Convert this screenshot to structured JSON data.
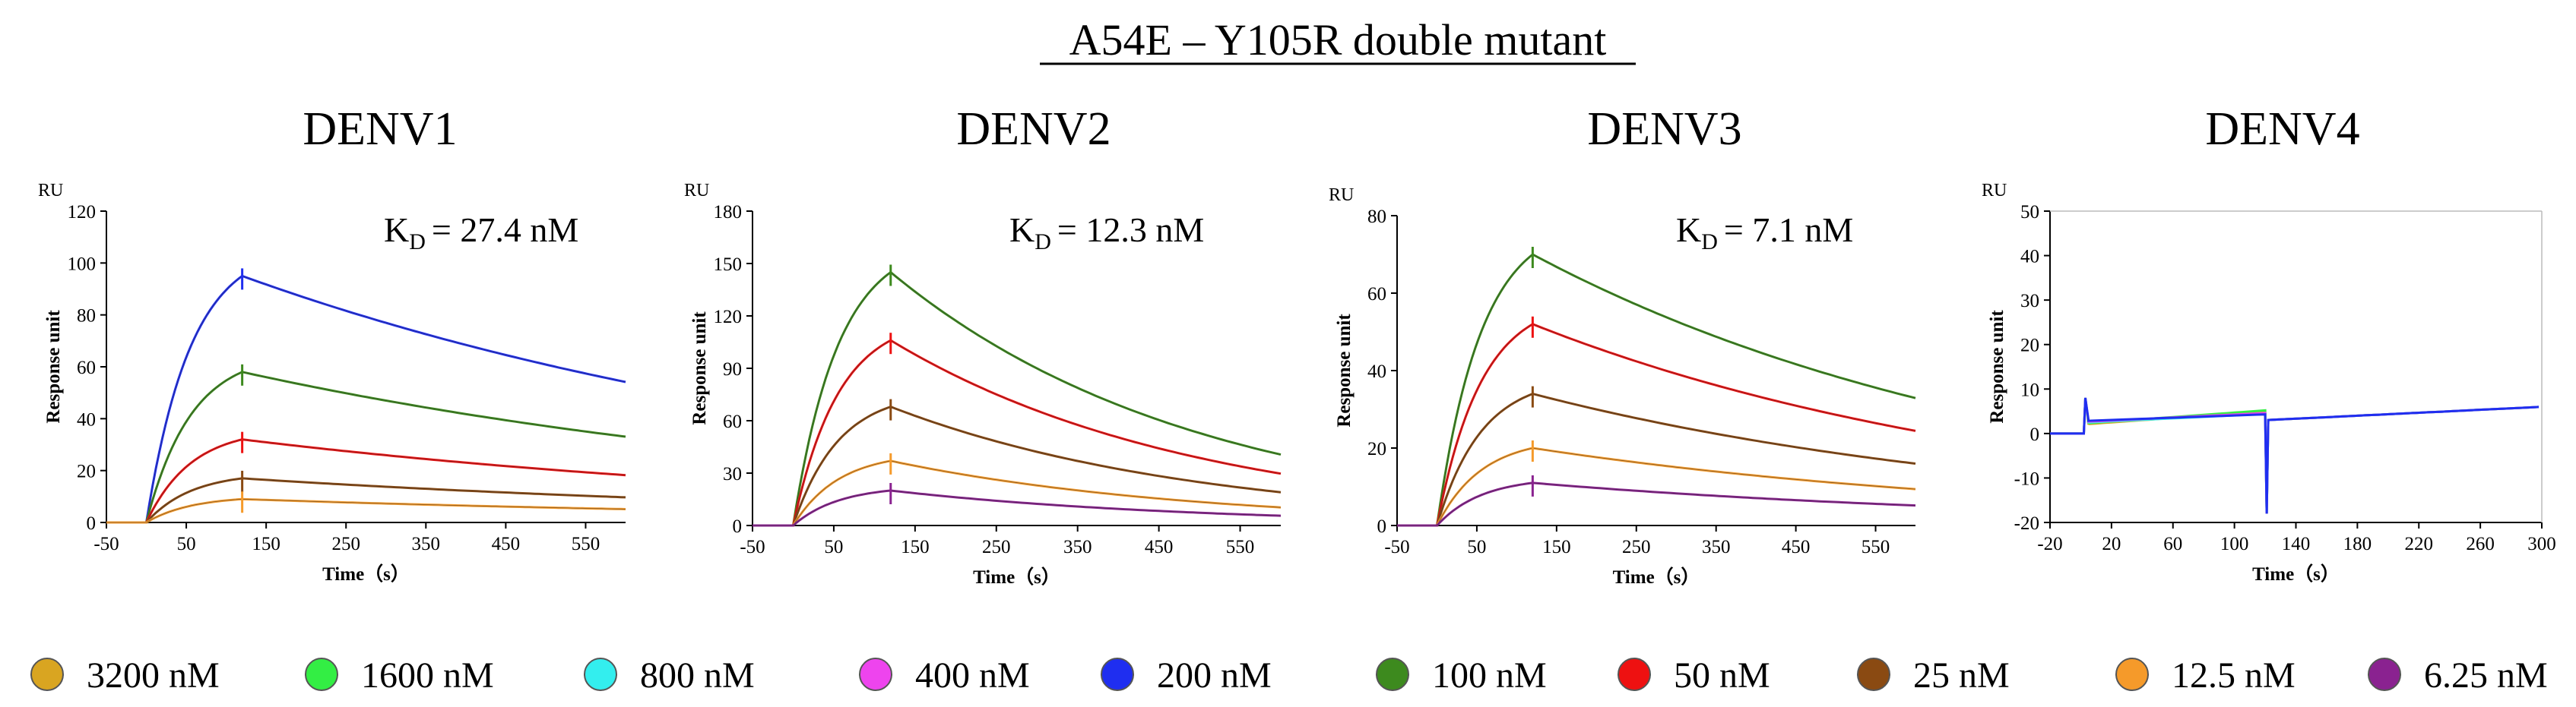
{
  "title": "A54E – Y105R double mutant",
  "legend": [
    {
      "label": "3200 nM",
      "color": "#d9a521"
    },
    {
      "label": "1600 nM",
      "color": "#33ee44"
    },
    {
      "label": "800 nM",
      "color": "#33eeee"
    },
    {
      "label": "400 nM",
      "color": "#ee44ee"
    },
    {
      "label": "200 nM",
      "color": "#1f2ef0"
    },
    {
      "label": "100 nM",
      "color": "#3d8a1e"
    },
    {
      "label": "50 nM",
      "color": "#ee1111"
    },
    {
      "label": "25 nM",
      "color": "#8a4a12"
    },
    {
      "label": "12.5 nM",
      "color": "#f59a2a"
    },
    {
      "label": "6.25 nM",
      "color": "#8a2290"
    }
  ],
  "chart_data": [
    {
      "type": "line",
      "title": "DENV1",
      "unit_label": "RU",
      "xlabel": "Time（s）",
      "ylabel": "Response unit",
      "xlim": [
        -50,
        600
      ],
      "ylim": [
        0,
        120
      ],
      "xticks": [
        -50,
        50,
        150,
        250,
        350,
        450,
        550
      ],
      "yticks": [
        0,
        20,
        40,
        60,
        80,
        100,
        120
      ],
      "kd": {
        "prefix": "K",
        "sub": "D",
        "value": "= 27.4 nM"
      },
      "injection_end": 120,
      "series": [
        {
          "conc": "200 nM",
          "color": "#1f2ef0",
          "peak": 95
        },
        {
          "conc": "100 nM",
          "color": "#3d8a1e",
          "peak": 58
        },
        {
          "conc": "50 nM",
          "color": "#ee1111",
          "peak": 32
        },
        {
          "conc": "25 nM",
          "color": "#8a4a12",
          "peak": 17
        },
        {
          "conc": "12.5 nM",
          "color": "#f59a2a",
          "peak": 9
        }
      ],
      "end_fraction": 0.57
    },
    {
      "type": "line",
      "title": "DENV2",
      "unit_label": "RU",
      "xlabel": "Time（s）",
      "ylabel": "Response unit",
      "xlim": [
        -50,
        600
      ],
      "ylim": [
        0,
        180
      ],
      "xticks": [
        -50,
        50,
        150,
        250,
        350,
        450,
        550
      ],
      "yticks": [
        0,
        30,
        60,
        90,
        120,
        150,
        180
      ],
      "kd": {
        "prefix": "K",
        "sub": "D",
        "value": "= 12.3 nM"
      },
      "injection_end": 120,
      "series": [
        {
          "conc": "100 nM",
          "color": "#3d8a1e",
          "peak": 145
        },
        {
          "conc": "50 nM",
          "color": "#ee1111",
          "peak": 106
        },
        {
          "conc": "25 nM",
          "color": "#8a4a12",
          "peak": 68
        },
        {
          "conc": "12.5 nM",
          "color": "#f59a2a",
          "peak": 37
        },
        {
          "conc": "6.25 nM",
          "color": "#8a2290",
          "peak": 20
        }
      ],
      "end_fraction": 0.28
    },
    {
      "type": "line",
      "title": "DENV3",
      "unit_label": "RU",
      "xlabel": "Time（s）",
      "ylabel": "Response unit",
      "xlim": [
        -50,
        600
      ],
      "ylim": [
        0,
        80
      ],
      "xticks": [
        -50,
        50,
        150,
        250,
        350,
        450,
        550
      ],
      "yticks": [
        0,
        20,
        40,
        60,
        80
      ],
      "kd": {
        "prefix": "K",
        "sub": "D",
        "value": "= 7.1 nM"
      },
      "injection_end": 120,
      "series": [
        {
          "conc": "100 nM",
          "color": "#3d8a1e",
          "peak": 70
        },
        {
          "conc": "50 nM",
          "color": "#ee1111",
          "peak": 52
        },
        {
          "conc": "25 nM",
          "color": "#8a4a12",
          "peak": 34
        },
        {
          "conc": "12.5 nM",
          "color": "#f59a2a",
          "peak": 20
        },
        {
          "conc": "6.25 nM",
          "color": "#8a2290",
          "peak": 11
        }
      ],
      "end_fraction": 0.47
    },
    {
      "type": "line",
      "title": "DENV4",
      "unit_label": "RU",
      "xlabel": "Time（s）",
      "ylabel": "Response unit",
      "xlim": [
        -20,
        300
      ],
      "ylim": [
        -20,
        50
      ],
      "xticks": [
        -20,
        20,
        60,
        100,
        140,
        180,
        220,
        260,
        300
      ],
      "yticks": [
        -20,
        -10,
        0,
        10,
        20,
        30,
        40,
        50
      ],
      "kd": null,
      "injection_end": 120,
      "series": [
        {
          "conc": "3200 nM",
          "color": "#d9a521",
          "peak": 5
        },
        {
          "conc": "1600 nM",
          "color": "#33ee44",
          "peak": 5
        },
        {
          "conc": "800 nM",
          "color": "#33eeee",
          "peak": 4
        },
        {
          "conc": "400 nM",
          "color": "#ee44ee",
          "peak": 4
        },
        {
          "conc": "200 nM",
          "color": "#1f2ef0",
          "peak": 3.5
        }
      ],
      "end_value": 6
    }
  ]
}
